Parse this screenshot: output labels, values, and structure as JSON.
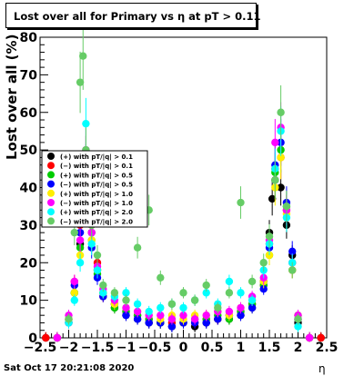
{
  "title": "Lost over all for Primary vs  η at pT > 0.11",
  "footer": "Sat Oct 17 20:21:08 2020",
  "chart_data": {
    "type": "scatter",
    "title": "Lost over all for Primary vs  η at pT > 0.11",
    "xlabel": "η",
    "ylabel": "Lost over all (%)",
    "xlim": [
      -2.5,
      2.5
    ],
    "ylim": [
      0,
      80
    ],
    "x_ticks": [
      "−2.5",
      "−2",
      "−1.5",
      "−1",
      "−0.5",
      "0",
      "0.5",
      "1",
      "1.5",
      "2",
      "2.5"
    ],
    "y_ticks": [
      "0",
      "10",
      "20",
      "30",
      "40",
      "50",
      "60",
      "70",
      "80"
    ],
    "legend_position": "middle-left",
    "series": [
      {
        "name": "(+) with pT/|q| > 0.1",
        "color": "#000000",
        "x": [
          -2.4,
          -2.2,
          -2.0,
          -1.9,
          -1.8,
          -1.7,
          -1.6,
          -1.5,
          -1.4,
          -1.2,
          -1.0,
          -0.8,
          -0.6,
          -0.4,
          -0.2,
          0.0,
          0.2,
          0.4,
          0.6,
          0.8,
          1.0,
          1.2,
          1.4,
          1.5,
          1.55,
          1.6,
          1.7,
          1.8,
          1.9,
          2.0,
          2.2,
          2.4
        ],
        "y": [
          0,
          0,
          4,
          12,
          25,
          42,
          28,
          18,
          12,
          8,
          6,
          5,
          4,
          4,
          3,
          4,
          3,
          4,
          5,
          5,
          6,
          8,
          15,
          28,
          37,
          42,
          40,
          30,
          22,
          4,
          0,
          0
        ]
      },
      {
        "name": "(−) with pT/|q| > 0.1",
        "color": "#ff0000",
        "x": [
          -2.4,
          -2.2,
          -2.0,
          -1.9,
          -1.8,
          -1.7,
          -1.6,
          -1.5,
          -1.4,
          -1.2,
          -1.0,
          -0.8,
          -0.6,
          -0.4,
          -0.2,
          0.0,
          0.2,
          0.4,
          0.6,
          0.8,
          1.0,
          1.2,
          1.4,
          1.5,
          1.6,
          1.7,
          1.8,
          1.9,
          2.0,
          2.2,
          2.4
        ],
        "y": [
          0,
          0,
          5,
          15,
          30,
          48,
          30,
          20,
          11,
          9,
          7,
          6,
          5,
          4,
          4,
          4,
          4,
          5,
          5,
          6,
          7,
          9,
          14,
          25,
          45,
          48,
          34,
          18,
          5,
          0,
          0
        ]
      },
      {
        "name": "(+) with pT/|q| > 0.5",
        "color": "#00cc00",
        "x": [
          -2.2,
          -2.0,
          -1.9,
          -1.8,
          -1.7,
          -1.6,
          -1.5,
          -1.4,
          -1.2,
          -1.0,
          -0.8,
          -0.6,
          -0.4,
          -0.2,
          0.0,
          0.2,
          0.4,
          0.6,
          0.8,
          1.0,
          1.2,
          1.4,
          1.5,
          1.6,
          1.7,
          1.8,
          1.9,
          2.0,
          2.2
        ],
        "y": [
          0,
          5,
          12,
          24,
          44,
          26,
          17,
          12,
          8,
          7,
          6,
          5,
          4,
          5,
          4,
          5,
          5,
          6,
          5,
          7,
          9,
          14,
          22,
          44,
          50,
          35,
          20,
          6,
          0
        ]
      },
      {
        "name": "(−) with pT/|q| > 0.5",
        "color": "#0000ff",
        "x": [
          -2.2,
          -2.0,
          -1.9,
          -1.8,
          -1.7,
          -1.6,
          -1.5,
          -1.4,
          -1.2,
          -1.0,
          -0.8,
          -0.6,
          -0.4,
          -0.2,
          0.0,
          0.2,
          0.4,
          0.6,
          0.8,
          1.0,
          1.2,
          1.4,
          1.5,
          1.6,
          1.7,
          1.8,
          1.9,
          2.0,
          2.2
        ],
        "y": [
          0,
          4,
          14,
          28,
          46,
          24,
          16,
          11,
          9,
          6,
          5,
          4,
          4,
          3,
          4,
          4,
          4,
          5,
          6,
          6,
          8,
          13,
          24,
          46,
          52,
          36,
          23,
          5,
          0
        ]
      },
      {
        "name": "(+) with pT/|q| > 1.0",
        "color": "#ffee00",
        "x": [
          -2.2,
          -2.0,
          -1.9,
          -1.8,
          -1.7,
          -1.6,
          -1.5,
          -1.4,
          -1.2,
          -1.0,
          -0.8,
          -0.6,
          -0.4,
          -0.2,
          0.0,
          0.2,
          0.4,
          0.6,
          0.8,
          1.0,
          1.2,
          1.4,
          1.5,
          1.6,
          1.7,
          1.8,
          1.9,
          2.0,
          2.2
        ],
        "y": [
          0,
          5,
          12,
          22,
          42,
          26,
          18,
          12,
          9,
          8,
          7,
          6,
          5,
          6,
          5,
          6,
          6,
          7,
          6,
          8,
          10,
          15,
          22,
          40,
          48,
          33,
          18,
          6,
          0
        ]
      },
      {
        "name": "(−) with pT/|q| > 1.0",
        "color": "#ff00ff",
        "x": [
          -2.2,
          -2.0,
          -1.9,
          -1.8,
          -1.7,
          -1.6,
          -1.5,
          -1.4,
          -1.2,
          -1.0,
          -0.8,
          -0.6,
          -0.4,
          -0.2,
          0.0,
          0.2,
          0.4,
          0.6,
          0.8,
          1.0,
          1.2,
          1.4,
          1.5,
          1.6,
          1.7,
          1.8,
          1.9,
          2.0,
          2.2
        ],
        "y": [
          0,
          6,
          15,
          26,
          50,
          28,
          19,
          13,
          10,
          8,
          7,
          6,
          6,
          5,
          6,
          5,
          6,
          7,
          7,
          8,
          11,
          16,
          26,
          52,
          56,
          34,
          20,
          6,
          0
        ]
      },
      {
        "name": "(+) with pT/|q| > 2.0",
        "color": "#00ffff",
        "x": [
          -2.0,
          -1.9,
          -1.8,
          -1.7,
          -1.6,
          -1.5,
          -1.4,
          -1.2,
          -1.0,
          -0.8,
          -0.6,
          -0.4,
          -0.2,
          0.0,
          0.2,
          0.4,
          0.6,
          0.8,
          1.0,
          1.2,
          1.4,
          1.5,
          1.6,
          1.7,
          1.8,
          1.9,
          2.0
        ],
        "y": [
          4,
          10,
          20,
          57,
          25,
          18,
          12,
          11,
          12,
          9,
          7,
          8,
          9,
          8,
          10,
          12,
          9,
          15,
          12,
          10,
          18,
          25,
          45,
          55,
          32,
          20,
          3
        ]
      },
      {
        "name": "(−) with pT/|q| > 2.0",
        "color": "#66cc66",
        "x": [
          -2.0,
          -1.9,
          -1.8,
          -1.75,
          -1.7,
          -1.6,
          -1.5,
          -1.4,
          -1.2,
          -1.0,
          -0.8,
          -0.6,
          -0.4,
          -0.2,
          0.0,
          0.2,
          0.4,
          0.6,
          0.8,
          1.0,
          1.2,
          1.4,
          1.5,
          1.6,
          1.7,
          1.8,
          1.9,
          2.0
        ],
        "y": [
          5,
          28,
          68,
          75,
          50,
          30,
          22,
          14,
          12,
          10,
          24,
          34,
          16,
          9,
          12,
          10,
          14,
          8,
          12,
          36,
          15,
          20,
          27,
          42,
          60,
          35,
          18,
          5
        ]
      }
    ]
  }
}
